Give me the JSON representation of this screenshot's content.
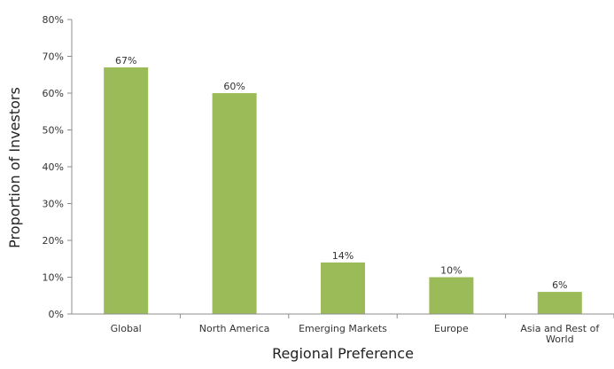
{
  "chart_data": {
    "type": "bar",
    "title": "",
    "xlabel": "Regional Preference",
    "ylabel": "Proportion of Investors",
    "categories": [
      "Global",
      "North America",
      "Emerging Markets",
      "Europe",
      "Asia and Rest of World"
    ],
    "values": [
      67,
      60,
      14,
      10,
      6
    ],
    "data_labels": [
      "67%",
      "60%",
      "14%",
      "10%",
      "6%"
    ],
    "ylim": [
      0,
      80
    ],
    "y_ticks": [
      0,
      10,
      20,
      30,
      40,
      50,
      60,
      70,
      80
    ],
    "y_tick_labels": [
      "0%",
      "10%",
      "20%",
      "30%",
      "40%",
      "50%",
      "60%",
      "70%",
      "80%"
    ],
    "grid": false,
    "legend": "none",
    "colors": {
      "bar": "#9bbb59",
      "axis": "#8c8c8c",
      "text": "#333333"
    }
  }
}
